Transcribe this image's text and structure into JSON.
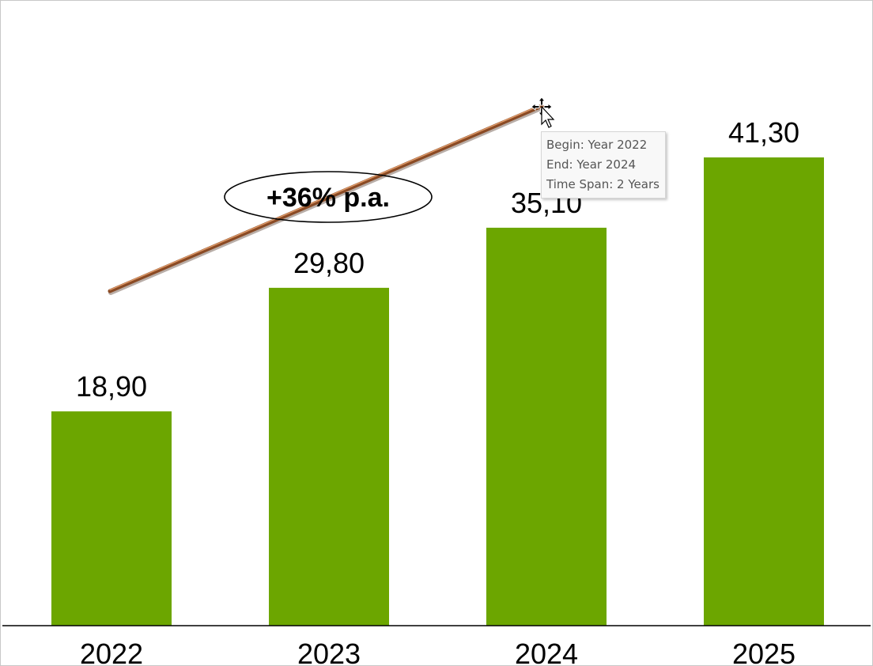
{
  "chart_data": {
    "type": "bar",
    "categories": [
      "2022",
      "2023",
      "2024",
      "2025"
    ],
    "values": [
      18.9,
      29.8,
      35.1,
      41.3
    ],
    "value_labels": [
      "18,90",
      "29,80",
      "35,10",
      "41,30"
    ],
    "ylim": [
      0,
      45
    ],
    "grid": false,
    "bar_color": "#6ca600",
    "annotations": [
      {
        "type": "cagr-arrow",
        "text": "+36% p.a.",
        "from": "2022",
        "to": "2024",
        "color": "#8a4a24"
      }
    ]
  },
  "tooltip": {
    "begin": "Begin: Year 2022",
    "end": "End: Year 2024",
    "span": "Time Span: 2 Years"
  },
  "cursor": {
    "icon": "move-cursor-icon"
  }
}
